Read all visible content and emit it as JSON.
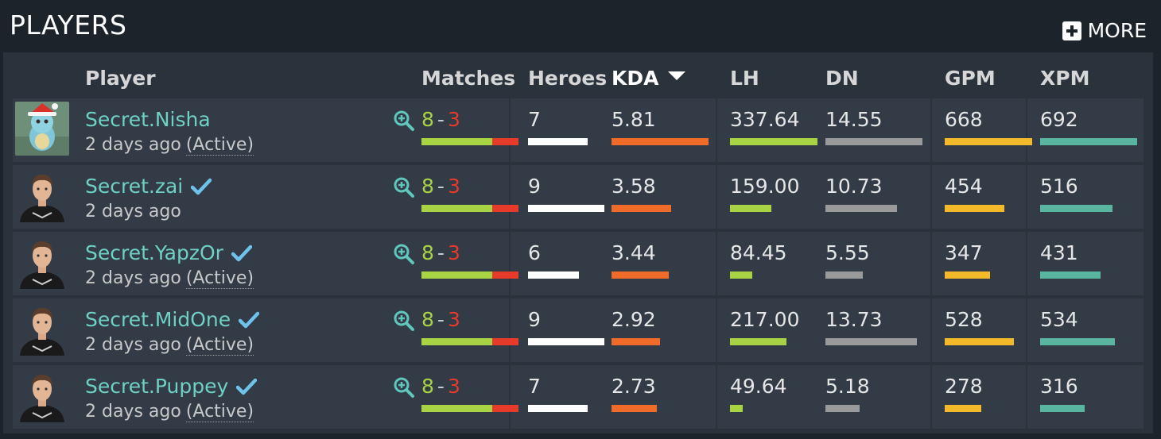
{
  "header": {
    "title": "PLAYERS",
    "more_label": "MORE"
  },
  "columns": {
    "player": "Player",
    "matches": "Matches",
    "heroes": "Heroes",
    "kda": "KDA",
    "lh": "LH",
    "dn": "DN",
    "gpm": "GPM",
    "xpm": "XPM"
  },
  "colors": {
    "name": "#6fd0c6",
    "win": "#a8d344",
    "loss": "#e63a2a",
    "heroes_bar": "#ffffff",
    "kda_bar": "#f06b2a",
    "lh_bar": "#a8d344",
    "dn_bar": "#9a9a9a",
    "gpm_bar": "#f2b92b",
    "xpm_bar": "#5ab5a0"
  },
  "players": [
    {
      "name": "Secret.Nisha",
      "verified": false,
      "last_seen": "2 days ago",
      "active": "(Active)",
      "wins": "8",
      "sep": "-",
      "losses": "3",
      "heroes": "7",
      "kda": "5.81",
      "lh": "337.64",
      "dn": "14.55",
      "gpm": "668",
      "xpm": "692",
      "avatar": "squirtle-avatar"
    },
    {
      "name": "Secret.zai",
      "verified": true,
      "last_seen": "2 days ago",
      "active": "",
      "wins": "8",
      "sep": "-",
      "losses": "3",
      "heroes": "9",
      "kda": "3.58",
      "lh": "159.00",
      "dn": "10.73",
      "gpm": "454",
      "xpm": "516",
      "avatar": "player-avatar"
    },
    {
      "name": "Secret.YapzOr",
      "verified": true,
      "last_seen": "2 days ago",
      "active": "(Active)",
      "wins": "8",
      "sep": "-",
      "losses": "3",
      "heroes": "6",
      "kda": "3.44",
      "lh": "84.45",
      "dn": "5.55",
      "gpm": "347",
      "xpm": "431",
      "avatar": "player-avatar"
    },
    {
      "name": "Secret.MidOne",
      "verified": true,
      "last_seen": "2 days ago",
      "active": "(Active)",
      "wins": "8",
      "sep": "-",
      "losses": "3",
      "heroes": "9",
      "kda": "2.92",
      "lh": "217.00",
      "dn": "13.73",
      "gpm": "528",
      "xpm": "534",
      "avatar": "player-avatar"
    },
    {
      "name": "Secret.Puppey",
      "verified": true,
      "last_seen": "2 days ago",
      "active": "(Active)",
      "wins": "8",
      "sep": "-",
      "losses": "3",
      "heroes": "7",
      "kda": "2.73",
      "lh": "49.64",
      "dn": "5.18",
      "gpm": "278",
      "xpm": "316",
      "avatar": "player-avatar"
    }
  ]
}
